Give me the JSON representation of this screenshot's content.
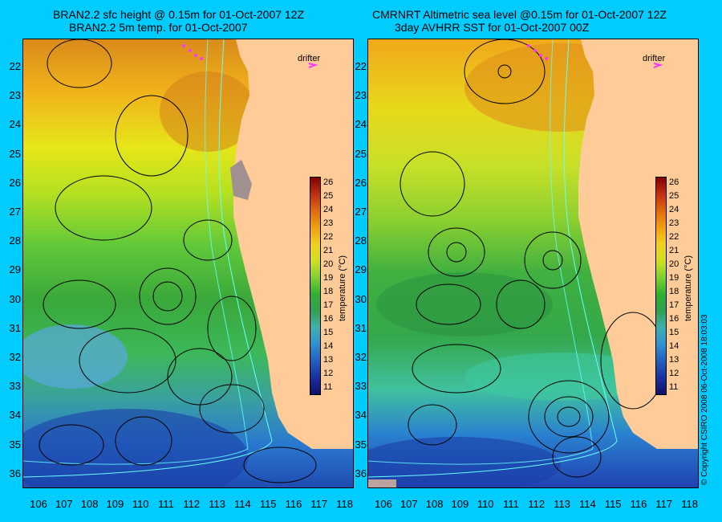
{
  "left_panel": {
    "title_line1": "BRAN2.2 sfc height @ 0.15m for 01-Oct-2007 12Z",
    "title_line2": "BRAN2.2 5m temp. for 01-Oct-2007"
  },
  "right_panel": {
    "title_line1": "CMRNRT Altimetric sea level  @0.15m  for 01-Oct-2007 12Z",
    "title_line2": "3day AVHRR SST for 01-Oct-2007 00Z"
  },
  "drifter_label": "drifter",
  "latitude_labels": [
    "22",
    "23",
    "24",
    "25",
    "26",
    "27",
    "28",
    "29",
    "30",
    "31",
    "32",
    "33",
    "34",
    "35",
    "36"
  ],
  "longitude_labels": [
    "106",
    "107",
    "108",
    "109",
    "110",
    "111",
    "112",
    "113",
    "114",
    "115",
    "116",
    "117",
    "118"
  ],
  "colorbar": {
    "title": "temperature (°C)",
    "ticks": [
      "26",
      "25",
      "24",
      "23",
      "22",
      "21",
      "20",
      "19",
      "18",
      "17",
      "16",
      "15",
      "14",
      "13",
      "12",
      "11"
    ]
  },
  "copyright": "© Copyright CSIRO 2008   06-Oct-2008 18:03:03",
  "colors": {
    "background": "#00ccff",
    "land": "#ffcc99",
    "contour": "#000000",
    "bathymetry": "#66ffff",
    "drifter": "#ff33ff"
  }
}
